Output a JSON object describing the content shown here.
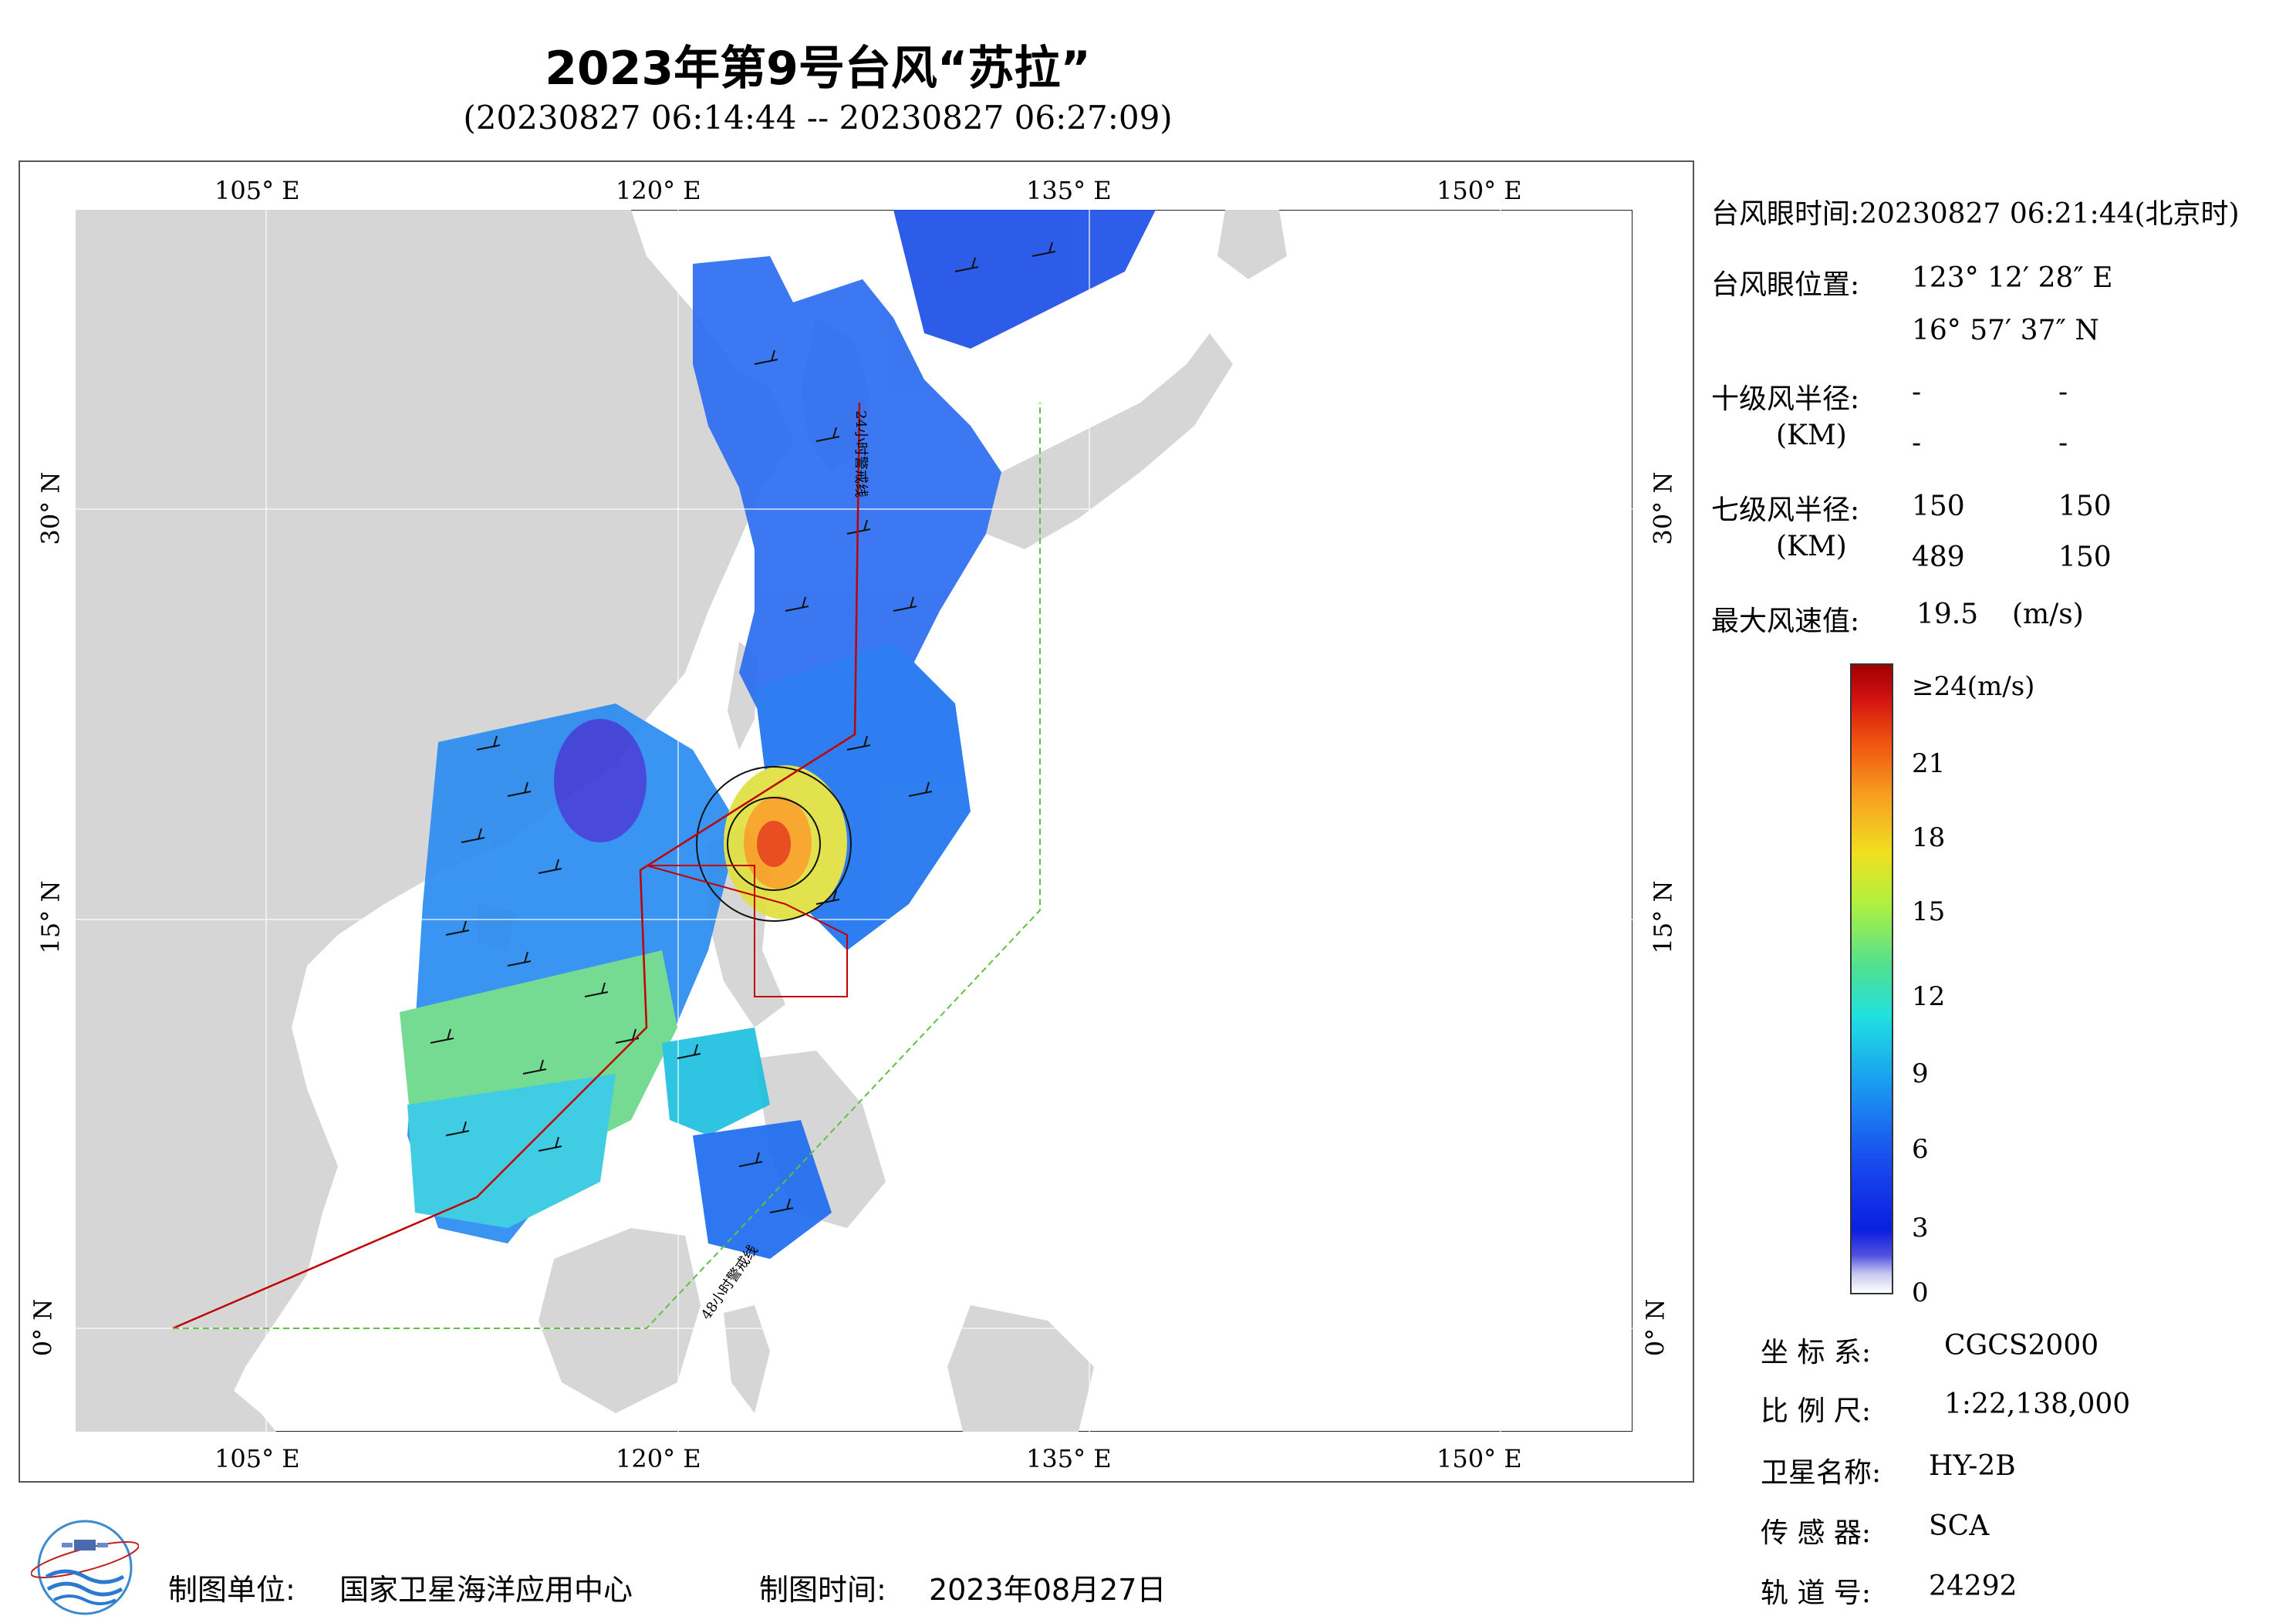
{
  "header": {
    "title": "2023年第9号台风“苏拉”",
    "subtitle": "(20230827 06:14:44 -- 20230827 06:27:09)"
  },
  "map": {
    "top_lon_labels": [
      "105° E",
      "120° E",
      "135° E",
      "150° E"
    ],
    "bottom_lon_labels": [
      "105° E",
      "120° E",
      "135° E",
      "150° E"
    ],
    "left_lat_labels": [
      "30° N",
      "15° N",
      "0° N"
    ],
    "right_lat_labels": [
      "30° N",
      "15° N",
      "0° N"
    ],
    "line_label_24h": "24小时警戒线",
    "line_label_48h": "48小时警戒线",
    "colors": {
      "land": "#d6d6d6",
      "ocean": "#ffffff",
      "warning_24h": "#c00000",
      "warning_48h": "#60c040"
    }
  },
  "info_panel": {
    "eye_time_label": "台风眼时间:",
    "eye_time_value": "20230827 06:21:44(北京时)",
    "eye_pos_label": "台风眼位置:",
    "eye_lon": "123° 12′ 28″ E",
    "eye_lat": "16° 57′ 37″ N",
    "r10_label": "十级风半径:",
    "r10_unit": "(KM)",
    "r10_values": [
      "-",
      "-",
      "-",
      "-"
    ],
    "r7_label": "七级风半径:",
    "r7_unit": "(KM)",
    "r7_values": [
      "150",
      "150",
      "489",
      "150"
    ],
    "max_wind_label": "最大风速值:",
    "max_wind_value": "19.5",
    "max_wind_unit": "(m/s)"
  },
  "colorbar": {
    "ticks": [
      "≥24(m/s)",
      "21",
      "18",
      "15",
      "12",
      "9",
      "6",
      "3",
      "0"
    ]
  },
  "meta": {
    "crs_label": "坐 标 系:",
    "crs_value": "CGCS2000",
    "scale_label": "比 例 尺:",
    "scale_value": "1:22,138,000",
    "sat_label": "卫星名称:",
    "sat_value": "HY-2B",
    "sensor_label": "传 感 器:",
    "sensor_value": "SCA",
    "orbit_label": "轨 道 号:",
    "orbit_value": "24292"
  },
  "footer": {
    "producer_label": "制图单位:",
    "producer_value": "国家卫星海洋应用中心",
    "date_label": "制图时间:",
    "date_value": "2023年08月27日"
  }
}
